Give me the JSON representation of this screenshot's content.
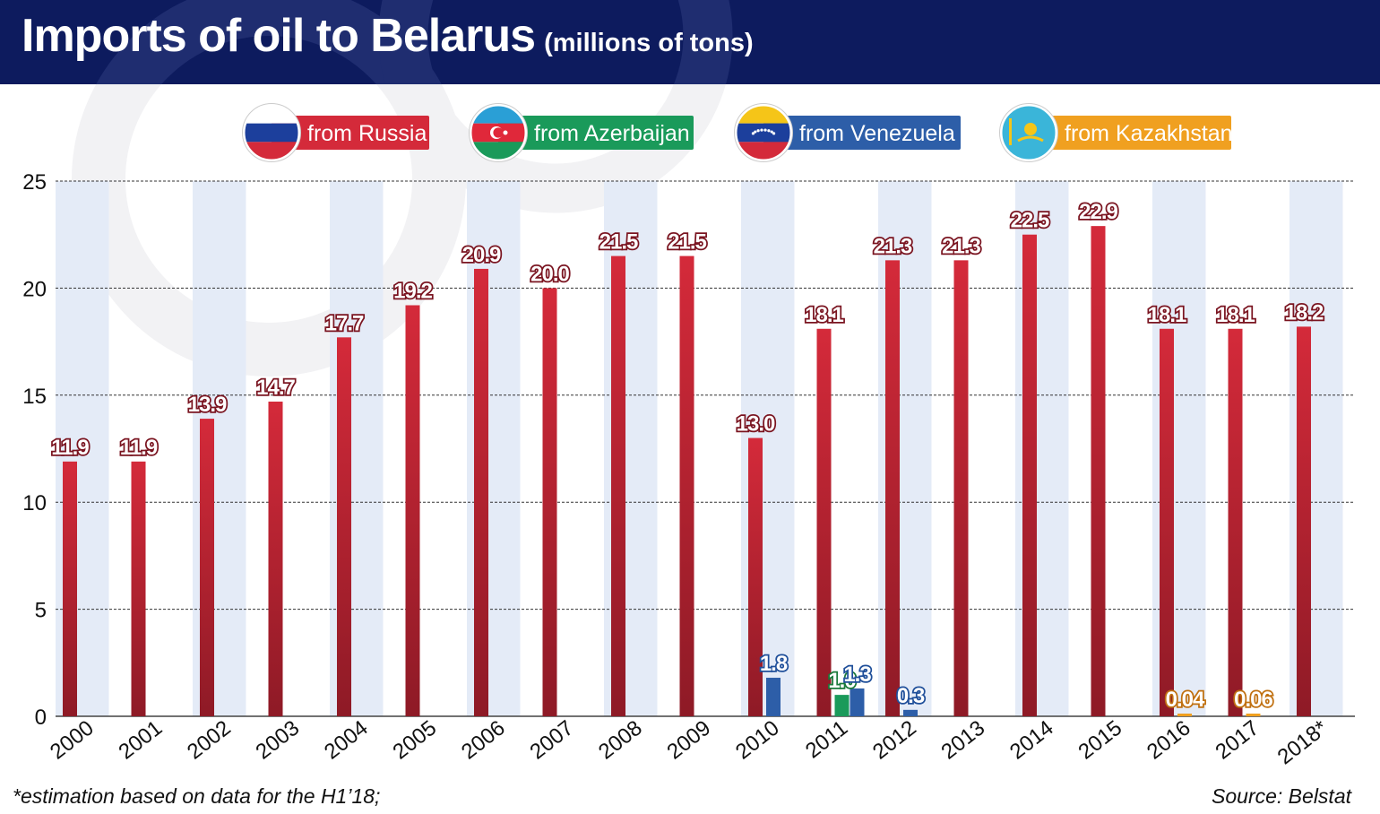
{
  "header": {
    "title": "Imports of oil to Belarus",
    "subtitle": "(millions of tons)"
  },
  "chart_data": {
    "type": "bar",
    "categories": [
      "2000",
      "2001",
      "2002",
      "2003",
      "2004",
      "2005",
      "2006",
      "2007",
      "2008",
      "2009",
      "2010",
      "2011",
      "2012",
      "2013",
      "2014",
      "2015",
      "2016",
      "2017",
      "2018*"
    ],
    "series": [
      {
        "name": "from Russia",
        "color": "#d42a3a",
        "flag": "russia-flag-icon",
        "values": [
          11.9,
          11.9,
          13.9,
          14.7,
          17.7,
          19.2,
          20.9,
          20.0,
          21.5,
          21.5,
          13.0,
          18.1,
          21.3,
          21.3,
          22.5,
          22.9,
          18.1,
          18.1,
          18.2
        ],
        "labels": [
          "11.9",
          "11.9",
          "13.9",
          "14.7",
          "17.7",
          "19.2",
          "20.9",
          "20.0",
          "21.5",
          "21.5",
          "13.0",
          "18.1",
          "21.3",
          "21.3",
          "22.5",
          "22.9",
          "18.1",
          "18.1",
          "18.2"
        ]
      },
      {
        "name": "from Azerbaijan",
        "color": "#1a9a5a",
        "flag": "azerbaijan-flag-icon",
        "values": [
          null,
          null,
          null,
          null,
          null,
          null,
          null,
          null,
          null,
          null,
          null,
          1.0,
          null,
          null,
          null,
          null,
          null,
          null,
          null
        ],
        "labels": [
          "",
          "",
          "",
          "",
          "",
          "",
          "",
          "",
          "",
          "",
          "",
          "1.0",
          "",
          "",
          "",
          "",
          "",
          "",
          ""
        ]
      },
      {
        "name": "from Venezuela",
        "color": "#2d5ea8",
        "flag": "venezuela-flag-icon",
        "values": [
          null,
          null,
          null,
          null,
          null,
          null,
          null,
          null,
          null,
          null,
          1.8,
          1.3,
          0.3,
          null,
          null,
          null,
          null,
          null,
          null
        ],
        "labels": [
          "",
          "",
          "",
          "",
          "",
          "",
          "",
          "",
          "",
          "",
          "1.8",
          "1.3",
          "0.3",
          "",
          "",
          "",
          "",
          "",
          ""
        ]
      },
      {
        "name": "from Kazakhstan",
        "color": "#f0a020",
        "flag": "kazakhstan-flag-icon",
        "values": [
          null,
          null,
          null,
          null,
          null,
          null,
          null,
          null,
          null,
          null,
          null,
          null,
          null,
          null,
          null,
          null,
          0.04,
          0.06,
          null
        ],
        "labels": [
          "",
          "",
          "",
          "",
          "",
          "",
          "",
          "",
          "",
          "",
          "",
          "",
          "",
          "",
          "",
          "",
          "0.04",
          "0.06",
          ""
        ]
      }
    ],
    "yticks": [
      "0",
      "5",
      "10",
      "15",
      "20",
      "25"
    ],
    "ylim": [
      0,
      25
    ],
    "grid": true,
    "legend_position": "top"
  },
  "footer": {
    "note": "*estimation based on data for the H1’18;",
    "source": "Source: Belstat"
  }
}
